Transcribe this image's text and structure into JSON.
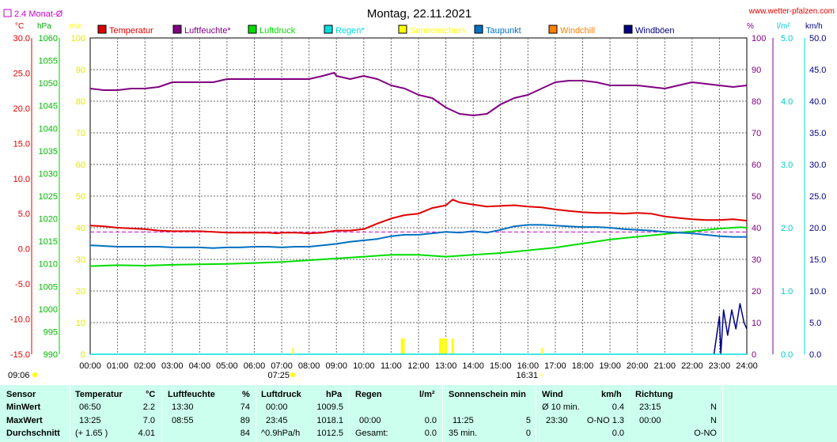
{
  "title": "Montag, 22.11.2021",
  "website": "www.wetter-pfalzen.com",
  "corner_label": "2.4 Monat-Ø",
  "colors": {
    "temperature": "#e00000",
    "humidity": "#800080",
    "pressure": "#00dd00",
    "rain": "#00dddd",
    "sunshine": "#ffff00",
    "dewpoint": "#0070c0",
    "windchill": "#ff8000",
    "gust": "#000080",
    "table_bg": "#ccffee"
  },
  "left_axes": {
    "temp_unit": "°C",
    "pressure_unit": "hPa",
    "sun_unit": "min",
    "temp_ticks": [
      "30.0",
      "25.0",
      "20.0",
      "15.0",
      "10.0",
      "5.0",
      "0.0",
      "-5.0",
      "-10.0",
      "-15.0"
    ],
    "pressure_ticks": [
      "1060",
      "1055",
      "1050",
      "1045",
      "1040",
      "1035",
      "1030",
      "1025",
      "1020",
      "1015",
      "1010",
      "1005",
      "1000",
      "995",
      "990"
    ],
    "sun_ticks": [
      "100",
      "90",
      "80",
      "70",
      "60",
      "50",
      "40",
      "30",
      "20",
      "10",
      "0"
    ]
  },
  "right_axes": {
    "hum_unit": "%",
    "rain_unit": "l/m²",
    "wind_unit": "km/h",
    "hum_ticks": [
      "100",
      "90",
      "80",
      "70",
      "60",
      "50",
      "40",
      "30",
      "20",
      "10",
      "0"
    ],
    "rain_ticks": [
      "5.0",
      "4.0",
      "3.0",
      "2.0",
      "1.0",
      "0.0"
    ],
    "wind_ticks": [
      "50.0",
      "45.0",
      "40.0",
      "35.0",
      "30.0",
      "25.0",
      "20.0",
      "15.0",
      "10.0",
      "5.0",
      "0.0"
    ]
  },
  "legend": [
    {
      "label": "Temperatur",
      "color": "#e00000"
    },
    {
      "label": "Luftfeuchte*",
      "color": "#800080"
    },
    {
      "label": "Luftdruck",
      "color": "#00dd00"
    },
    {
      "label": "Regen*",
      "color": "#00dddd"
    },
    {
      "label": "Sonnenschein",
      "color": "#ffff00"
    },
    {
      "label": "Taupunkt",
      "color": "#0070c0"
    },
    {
      "label": "Windchill",
      "color": "#ff8000"
    },
    {
      "label": "Windböen",
      "color": "#000080"
    }
  ],
  "x_ticks": [
    "00:00",
    "01:00",
    "02:00",
    "03:00",
    "04:00",
    "05:00",
    "06:00",
    "07:00",
    "08:00",
    "09:00",
    "10:00",
    "11:00",
    "12:00",
    "13:00",
    "14:00",
    "15:00",
    "16:00",
    "17:00",
    "18:00",
    "19:00",
    "20:00",
    "21:00",
    "22:00",
    "23:00",
    "24:00"
  ],
  "sunrise": "07:25",
  "sunset": "16:31",
  "time_left": "09:06",
  "chart_data": {
    "type": "line",
    "x_unit": "hours",
    "xlim": [
      0,
      24
    ],
    "series": [
      {
        "name": "Temperatur",
        "axis": "temp",
        "ylim": [
          -15,
          30
        ],
        "x": [
          0,
          0.5,
          1,
          1.5,
          2,
          2.5,
          3,
          3.5,
          4,
          4.5,
          5,
          5.5,
          6,
          6.5,
          6.83,
          7,
          7.5,
          8,
          8.5,
          9,
          9.5,
          10,
          10.5,
          11,
          11.5,
          12,
          12.5,
          13,
          13.25,
          13.5,
          14,
          14.5,
          15,
          15.5,
          16,
          16.5,
          17,
          17.5,
          18,
          18.5,
          19,
          19.5,
          20,
          20.5,
          21,
          21.5,
          22,
          22.5,
          23,
          23.5,
          24
        ],
        "y": [
          3.3,
          3.2,
          3.0,
          2.9,
          2.8,
          2.6,
          2.5,
          2.5,
          2.5,
          2.4,
          2.3,
          2.3,
          2.3,
          2.3,
          2.2,
          2.3,
          2.3,
          2.2,
          2.3,
          2.6,
          2.6,
          2.8,
          3.6,
          4.3,
          4.8,
          5.0,
          5.8,
          6.2,
          7.0,
          6.6,
          6.3,
          6.0,
          6.1,
          6.2,
          6.0,
          5.9,
          5.6,
          5.4,
          5.2,
          5.1,
          5.1,
          5.0,
          5.1,
          5.0,
          4.6,
          4.4,
          4.2,
          4.1,
          4.1,
          4.2,
          4.0
        ]
      },
      {
        "name": "Luftfeuchte*",
        "axis": "hum",
        "ylim": [
          0,
          100
        ],
        "x": [
          0,
          0.5,
          1,
          1.5,
          2,
          2.5,
          3,
          3.5,
          4,
          4.5,
          5,
          5.5,
          6,
          6.5,
          7,
          7.5,
          8,
          8.5,
          8.92,
          9,
          9.5,
          10,
          10.5,
          11,
          11.5,
          12,
          12.5,
          13,
          13.5,
          14,
          14.5,
          15,
          15.5,
          16,
          16.5,
          17,
          17.5,
          18,
          18.5,
          19,
          19.5,
          20,
          20.5,
          21,
          21.5,
          22,
          22.5,
          23,
          23.5,
          24
        ],
        "y": [
          84,
          83.5,
          83.5,
          84,
          84,
          84.5,
          86,
          86,
          86,
          86,
          87,
          87,
          87,
          87,
          87,
          87,
          87,
          88,
          89,
          88,
          87,
          88,
          87,
          85,
          84,
          82,
          81,
          78,
          76,
          75.5,
          76,
          79,
          81,
          82,
          84,
          86,
          86.5,
          86.5,
          86,
          85,
          85,
          85,
          84.5,
          84,
          85,
          86,
          85.5,
          85,
          84.5,
          85
        ]
      },
      {
        "name": "Luftdruck",
        "axis": "pressure",
        "ylim": [
          990,
          1060
        ],
        "x": [
          0,
          1,
          2,
          3,
          4,
          5,
          6,
          7,
          8,
          9,
          10,
          11,
          12,
          13,
          14,
          15,
          16,
          17,
          18,
          19,
          20,
          21,
          22,
          23,
          23.75,
          24
        ],
        "y": [
          1009.5,
          1009.7,
          1009.6,
          1009.8,
          1009.9,
          1010.0,
          1010.2,
          1010.4,
          1010.8,
          1011.2,
          1011.6,
          1012.0,
          1012.0,
          1011.6,
          1012.0,
          1012.4,
          1013.0,
          1013.6,
          1014.5,
          1015.4,
          1016.0,
          1016.6,
          1017.2,
          1017.8,
          1018.1,
          1018.0
        ]
      },
      {
        "name": "Taupunkt",
        "axis": "temp",
        "ylim": [
          -15,
          30
        ],
        "x": [
          0,
          0.5,
          1,
          1.5,
          2,
          2.5,
          3,
          3.5,
          4,
          4.5,
          5,
          5.5,
          6,
          6.5,
          7,
          7.5,
          8,
          8.5,
          9,
          9.5,
          10,
          10.5,
          11,
          11.5,
          12,
          12.5,
          13,
          13.5,
          14,
          14.5,
          15,
          15.5,
          16,
          16.5,
          17,
          17.5,
          18,
          18.5,
          19,
          19.5,
          20,
          20.5,
          21,
          21.5,
          22,
          22.5,
          23,
          23.5,
          24
        ],
        "y": [
          0.5,
          0.4,
          0.3,
          0.3,
          0.3,
          0.3,
          0.2,
          0.2,
          0.2,
          0.1,
          0.2,
          0.2,
          0.3,
          0.3,
          0.2,
          0.3,
          0.3,
          0.5,
          0.7,
          1.0,
          1.2,
          1.4,
          1.8,
          2.0,
          2.0,
          2.2,
          2.4,
          2.3,
          2.5,
          2.3,
          2.7,
          3.2,
          3.4,
          3.4,
          3.3,
          3.2,
          3.1,
          3.1,
          3.0,
          2.8,
          2.7,
          2.6,
          2.4,
          2.3,
          2.2,
          2.0,
          1.8,
          1.7,
          1.7
        ]
      },
      {
        "name": "Windböen",
        "axis": "wind",
        "ylim": [
          0,
          50
        ],
        "x": [
          22.8,
          23.0,
          23.05,
          23.15,
          23.3,
          23.45,
          23.6,
          23.75,
          23.9,
          24
        ],
        "y": [
          0,
          6,
          0,
          7,
          3,
          7,
          4,
          8,
          5,
          4
        ]
      },
      {
        "name": "Regen*",
        "axis": "rain",
        "ylim": [
          0,
          5
        ],
        "x": [
          0,
          24
        ],
        "y": [
          0,
          0
        ]
      }
    ],
    "sunshine_bars": [
      {
        "x": 11.4,
        "y": 5
      },
      {
        "x": 11.45,
        "y": 5
      },
      {
        "x": 12.8,
        "y": 5
      },
      {
        "x": 12.9,
        "y": 5
      },
      {
        "x": 13.0,
        "y": 5
      },
      {
        "x": 13.25,
        "y": 5
      }
    ],
    "monthly_avg_temp": 2.4
  },
  "table": {
    "headers": [
      "Sensor",
      "Temperatur",
      "°C",
      "Luftfeuchte",
      "%",
      "Luftdruck",
      "hPa",
      "Regen",
      "l/m²",
      "Sonnenschein min",
      "Wind",
      "km/h",
      "Richtung"
    ],
    "rows": {
      "min": {
        "label": "MinWert",
        "temp_time": "06:50",
        "temp_val": "2.2",
        "hum_time": "13:30",
        "hum_val": "74",
        "press_time": "00:00",
        "press_val": "1009.5",
        "wind_time": "Ø 10 min.",
        "wind_val": "0.4",
        "dir_time": "23:15",
        "dir_val": "N"
      },
      "max": {
        "label": "MaxWert",
        "temp_time": "13:25",
        "temp_val": "7.0",
        "hum_time": "08:55",
        "hum_val": "89",
        "press_time": "23:45",
        "press_val": "1018.1",
        "rain_time": "00:00",
        "rain_val": "0.0",
        "sun_time": "11:25",
        "sun_val": "5",
        "wind_time": "23:30",
        "wind_val": "O-NO 1.3",
        "dir_time": "00:00",
        "dir_val": "N"
      },
      "avg": {
        "label": "Durchschnitt",
        "temp_time": "(+ 1.65 )",
        "temp_val": "4.01",
        "hum_val": "84",
        "press_time": "^0.9hPa/h",
        "press_val": "1012.5",
        "rain_time": "Gesamt:",
        "rain_val": "0.0",
        "sun_time": "35 min.",
        "sun_val": "0",
        "wind_val": "0.0",
        "dir_val": "O-NO"
      }
    }
  }
}
